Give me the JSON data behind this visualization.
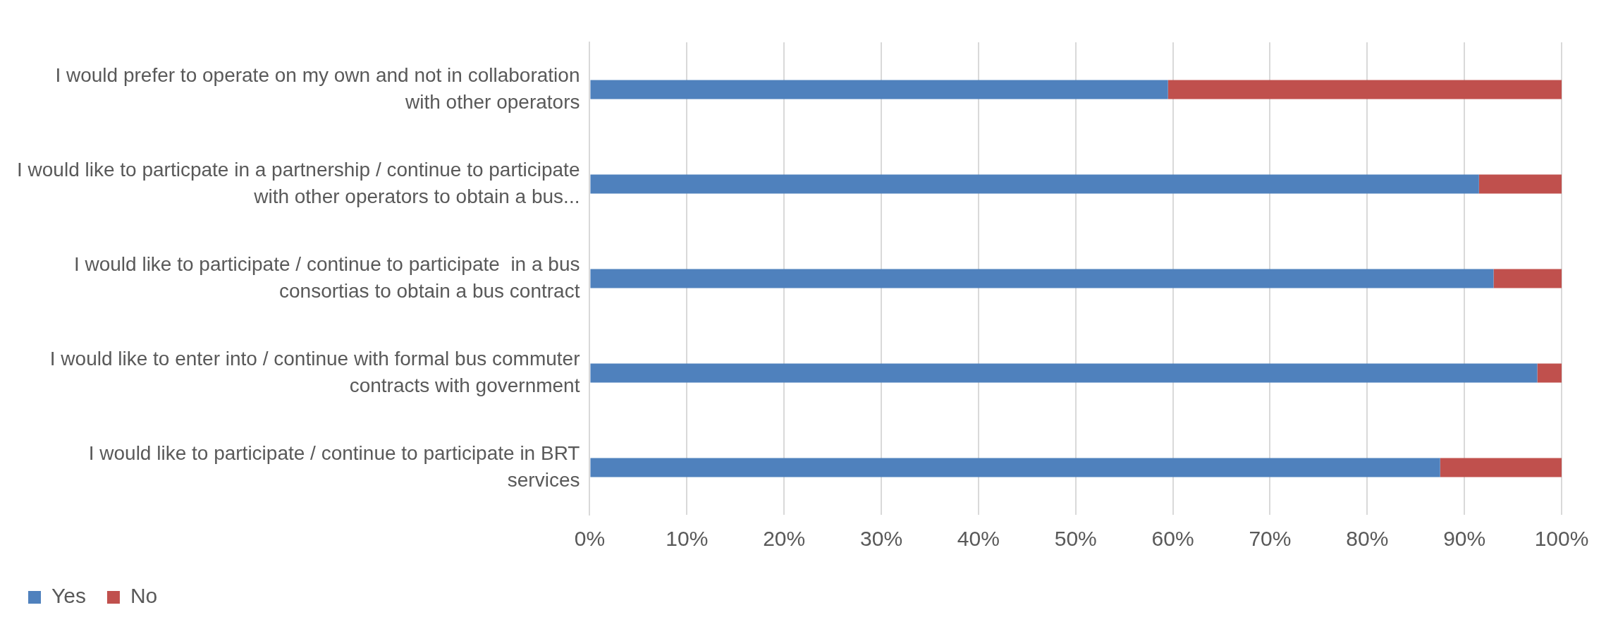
{
  "chart_data": {
    "type": "bar",
    "orientation": "horizontal",
    "stacked": true,
    "categories": [
      "I would prefer to operate on my own and not in collaboration with other operators",
      "I would like to particpate in a partnership / continue to participate with other operators to obtain a bus...",
      "I would like to participate / continue to participate  in a bus consortias to obtain a bus contract",
      "I would like to enter into / continue with formal bus commuter contracts with government",
      "I would like to participate / continue to participate in BRT services"
    ],
    "series": [
      {
        "name": "Yes",
        "color": "#4f81bd",
        "values": [
          59.5,
          91.5,
          93,
          97.5,
          87.5
        ]
      },
      {
        "name": "No",
        "color": "#c0504d",
        "values": [
          40.5,
          8.5,
          7,
          2.5,
          12.5
        ]
      }
    ],
    "xlim": [
      0,
      100
    ],
    "xticks": [
      {
        "value": 0,
        "label": "0%"
      },
      {
        "value": 10,
        "label": "10%"
      },
      {
        "value": 20,
        "label": "20%"
      },
      {
        "value": 30,
        "label": "30%"
      },
      {
        "value": 40,
        "label": "40%"
      },
      {
        "value": 50,
        "label": "50%"
      },
      {
        "value": 60,
        "label": "60%"
      },
      {
        "value": 70,
        "label": "70%"
      },
      {
        "value": 80,
        "label": "80%"
      },
      {
        "value": 90,
        "label": "90%"
      },
      {
        "value": 100,
        "label": "100%"
      }
    ],
    "grid": "x",
    "legend": "bottom"
  }
}
